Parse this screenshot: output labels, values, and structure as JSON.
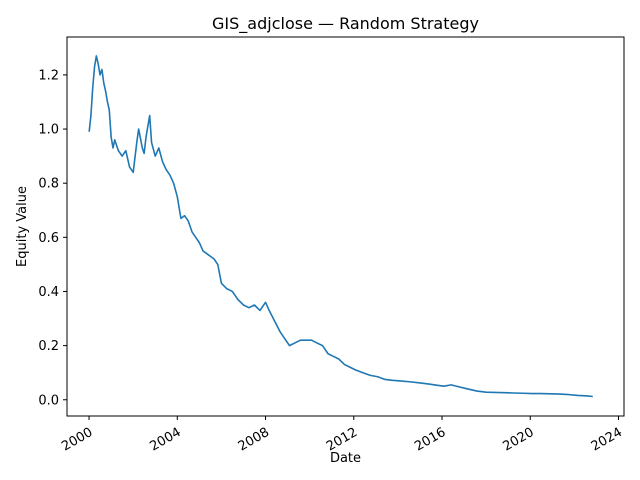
{
  "chart_data": {
    "type": "line",
    "title": "GIS_adjclose — Random Strategy",
    "xlabel": "Date",
    "ylabel": "Equity Value",
    "grid": false,
    "legend": "none",
    "xlim": [
      "1999-01-01",
      "2024-04-01"
    ],
    "ylim": [
      -0.06,
      1.34
    ],
    "x_ticks": [
      "2000",
      "2004",
      "2008",
      "2012",
      "2016",
      "2020",
      "2024"
    ],
    "y_ticks": [
      "0.0",
      "0.2",
      "0.4",
      "0.6",
      "0.8",
      "1.0",
      "1.2"
    ],
    "series": [
      {
        "color": "#1f77b4",
        "x": [
          "2000-01-03",
          "2000-02-01",
          "2000-03-01",
          "2000-04-01",
          "2000-05-01",
          "2000-06-01",
          "2000-07-01",
          "2000-08-01",
          "2000-09-01",
          "2000-10-01",
          "2000-11-01",
          "2000-12-01",
          "2001-01-01",
          "2001-02-01",
          "2001-03-01",
          "2001-05-01",
          "2001-07-01",
          "2001-09-01",
          "2001-11-01",
          "2002-01-01",
          "2002-03-01",
          "2002-04-01",
          "2002-06-01",
          "2002-07-01",
          "2002-08-01",
          "2002-10-01",
          "2002-11-01",
          "2003-01-01",
          "2003-03-01",
          "2003-05-01",
          "2003-07-01",
          "2003-09-01",
          "2003-11-01",
          "2004-01-01",
          "2004-03-01",
          "2004-05-01",
          "2004-07-01",
          "2004-09-01",
          "2004-11-01",
          "2005-01-01",
          "2005-03-01",
          "2005-05-01",
          "2005-07-01",
          "2005-09-01",
          "2005-11-01",
          "2006-01-01",
          "2006-04-01",
          "2006-07-01",
          "2006-10-01",
          "2007-01-01",
          "2007-04-01",
          "2007-07-01",
          "2007-10-01",
          "2008-01-01",
          "2008-03-01",
          "2008-06-01",
          "2008-09-01",
          "2008-12-01",
          "2009-02-01",
          "2009-05-01",
          "2009-08-01",
          "2009-11-01",
          "2010-02-01",
          "2010-05-01",
          "2010-08-01",
          "2010-11-01",
          "2011-02-01",
          "2011-05-01",
          "2011-08-01",
          "2011-11-01",
          "2012-02-01",
          "2012-06-01",
          "2012-10-01",
          "2013-02-01",
          "2013-06-01",
          "2013-10-01",
          "2014-03-01",
          "2014-08-01",
          "2015-01-01",
          "2015-06-01",
          "2015-11-01",
          "2016-02-01",
          "2016-06-01",
          "2016-10-01",
          "2017-03-01",
          "2017-08-01",
          "2018-01-01",
          "2018-06-01",
          "2018-11-01",
          "2019-04-01",
          "2019-09-01",
          "2020-02-01",
          "2020-07-01",
          "2020-12-01",
          "2021-05-01",
          "2021-10-01",
          "2022-03-01",
          "2022-08-01",
          "2022-11-01"
        ],
        "y": [
          0.99,
          1.05,
          1.15,
          1.23,
          1.27,
          1.24,
          1.2,
          1.22,
          1.17,
          1.14,
          1.1,
          1.07,
          0.97,
          0.93,
          0.96,
          0.92,
          0.9,
          0.92,
          0.86,
          0.84,
          0.95,
          1.0,
          0.93,
          0.91,
          0.97,
          1.05,
          0.95,
          0.9,
          0.93,
          0.88,
          0.85,
          0.83,
          0.8,
          0.75,
          0.67,
          0.68,
          0.66,
          0.62,
          0.6,
          0.58,
          0.55,
          0.54,
          0.53,
          0.52,
          0.5,
          0.43,
          0.41,
          0.4,
          0.37,
          0.35,
          0.34,
          0.35,
          0.33,
          0.36,
          0.33,
          0.29,
          0.25,
          0.22,
          0.2,
          0.21,
          0.22,
          0.22,
          0.22,
          0.21,
          0.2,
          0.17,
          0.16,
          0.15,
          0.13,
          0.12,
          0.11,
          0.1,
          0.09,
          0.085,
          0.075,
          0.072,
          0.069,
          0.066,
          0.062,
          0.058,
          0.053,
          0.05,
          0.055,
          0.048,
          0.04,
          0.032,
          0.028,
          0.027,
          0.026,
          0.025,
          0.024,
          0.023,
          0.023,
          0.022,
          0.021,
          0.019,
          0.016,
          0.014,
          0.012
        ]
      }
    ]
  }
}
